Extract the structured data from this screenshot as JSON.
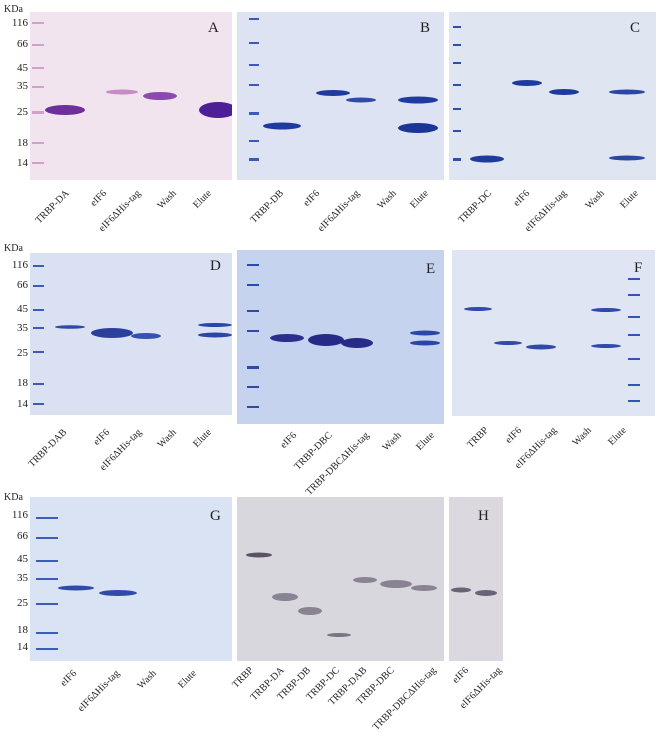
{
  "units": "KDa",
  "mw_markers": [
    "116",
    "66",
    "45",
    "35",
    "25",
    "18",
    "14"
  ],
  "panels": [
    {
      "id": "A",
      "lanes": [
        "TRBP-DA",
        "eIF6",
        "eIF6ΔHis-tag",
        "Wash",
        "Elute"
      ]
    },
    {
      "id": "B",
      "lanes": [
        "TRBP-DB",
        "eIF6",
        "eIF6ΔHis-tag",
        "Wash",
        "Elute"
      ]
    },
    {
      "id": "C",
      "lanes": [
        "TRBP-DC",
        "eIF6",
        "eIF6ΔHis-tag",
        "Wash",
        "Elute"
      ]
    },
    {
      "id": "D",
      "lanes": [
        "TRBP-DAB",
        "eIF6",
        "eIF6ΔHis-tag",
        "Wash",
        "Elute"
      ]
    },
    {
      "id": "E",
      "lanes": [
        "eIF6",
        "TRBP-DBC",
        "TRBP-DBCΔHis-tag",
        "Wash",
        "Elute"
      ]
    },
    {
      "id": "F",
      "lanes": [
        "TRBP",
        "eIF6",
        "eIF6ΔHis-tag",
        "Wash",
        "Elute"
      ]
    },
    {
      "id": "G",
      "lanes": [
        "eIF6",
        "eIF6ΔHis-tag",
        "Wash",
        "Elute"
      ]
    },
    {
      "id": "western1",
      "lanes": [
        "TRBP",
        "TRBP-DA",
        "TRBP-DB",
        "TRBP-DC",
        "TRBP-DAB",
        "TRBP-DBC",
        "TRBP-DBCΔHis-tag"
      ]
    },
    {
      "id": "H",
      "lanes": [
        "eIF6",
        "eIF6ΔHis-tag"
      ]
    }
  ]
}
